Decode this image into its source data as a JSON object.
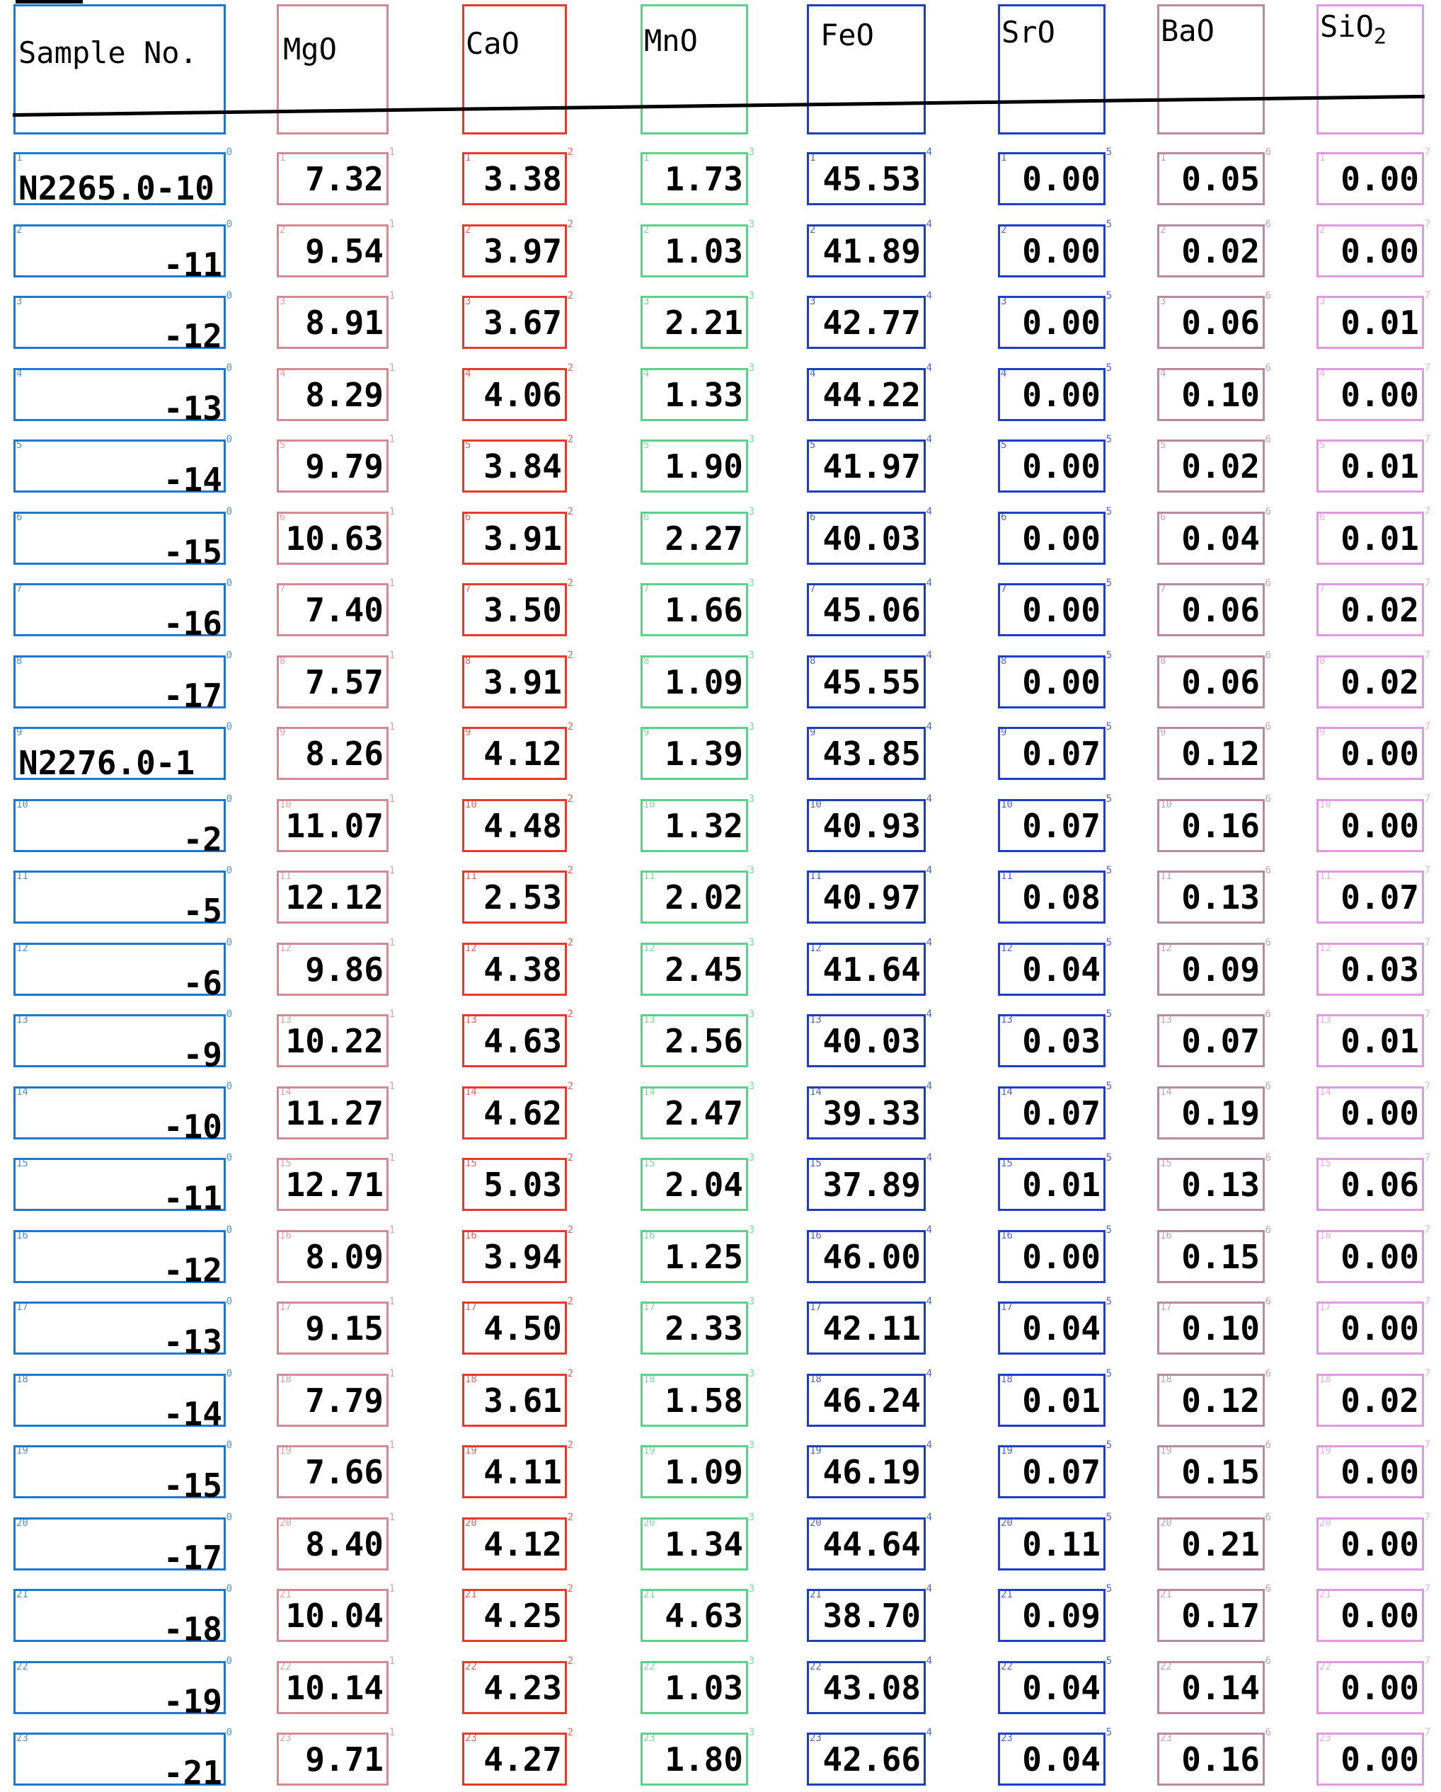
{
  "colors": {
    "sample": "#1e78d2",
    "mgo": "#d48a93",
    "cao": "#e8392f",
    "mno": "#5cd18a",
    "feo": "#1f3fb8",
    "sro": "#1f3fc8",
    "bao": "#b98aa0",
    "sio2": "#e09be0"
  },
  "header": {
    "sample_no": "Sample No.",
    "mgo": "MgO",
    "cao": "CaO",
    "mno": "MnO",
    "feo": "FeO",
    "sro": "SrO",
    "bao": "BaO",
    "sio2_main": "SiO",
    "sio2_sub": "2"
  },
  "rows": [
    {
      "sample": "N2265.0-10",
      "mgo": "7.32",
      "cao": "3.38",
      "mno": "1.73",
      "feo": "45.53",
      "sro": "0.00",
      "bao": "0.05",
      "sio2": "0.00"
    },
    {
      "sample": "-11",
      "mgo": "9.54",
      "cao": "3.97",
      "mno": "1.03",
      "feo": "41.89",
      "sro": "0.00",
      "bao": "0.02",
      "sio2": "0.00"
    },
    {
      "sample": "-12",
      "mgo": "8.91",
      "cao": "3.67",
      "mno": "2.21",
      "feo": "42.77",
      "sro": "0.00",
      "bao": "0.06",
      "sio2": "0.01"
    },
    {
      "sample": "-13",
      "mgo": "8.29",
      "cao": "4.06",
      "mno": "1.33",
      "feo": "44.22",
      "sro": "0.00",
      "bao": "0.10",
      "sio2": "0.00"
    },
    {
      "sample": "-14",
      "mgo": "9.79",
      "cao": "3.84",
      "mno": "1.90",
      "feo": "41.97",
      "sro": "0.00",
      "bao": "0.02",
      "sio2": "0.01"
    },
    {
      "sample": "-15",
      "mgo": "10.63",
      "cao": "3.91",
      "mno": "2.27",
      "feo": "40.03",
      "sro": "0.00",
      "bao": "0.04",
      "sio2": "0.01"
    },
    {
      "sample": "-16",
      "mgo": "7.40",
      "cao": "3.50",
      "mno": "1.66",
      "feo": "45.06",
      "sro": "0.00",
      "bao": "0.06",
      "sio2": "0.02"
    },
    {
      "sample": "-17",
      "mgo": "7.57",
      "cao": "3.91",
      "mno": "1.09",
      "feo": "45.55",
      "sro": "0.00",
      "bao": "0.06",
      "sio2": "0.02"
    },
    {
      "sample": "N2276.0-1",
      "mgo": "8.26",
      "cao": "4.12",
      "mno": "1.39",
      "feo": "43.85",
      "sro": "0.07",
      "bao": "0.12",
      "sio2": "0.00"
    },
    {
      "sample": "-2",
      "mgo": "11.07",
      "cao": "4.48",
      "mno": "1.32",
      "feo": "40.93",
      "sro": "0.07",
      "bao": "0.16",
      "sio2": "0.00"
    },
    {
      "sample": "-5",
      "mgo": "12.12",
      "cao": "2.53",
      "mno": "2.02",
      "feo": "40.97",
      "sro": "0.08",
      "bao": "0.13",
      "sio2": "0.07"
    },
    {
      "sample": "-6",
      "mgo": "9.86",
      "cao": "4.38",
      "mno": "2.45",
      "feo": "41.64",
      "sro": "0.04",
      "bao": "0.09",
      "sio2": "0.03"
    },
    {
      "sample": "-9",
      "mgo": "10.22",
      "cao": "4.63",
      "mno": "2.56",
      "feo": "40.03",
      "sro": "0.03",
      "bao": "0.07",
      "sio2": "0.01"
    },
    {
      "sample": "-10",
      "mgo": "11.27",
      "cao": "4.62",
      "mno": "2.47",
      "feo": "39.33",
      "sro": "0.07",
      "bao": "0.19",
      "sio2": "0.00"
    },
    {
      "sample": "-11",
      "mgo": "12.71",
      "cao": "5.03",
      "mno": "2.04",
      "feo": "37.89",
      "sro": "0.01",
      "bao": "0.13",
      "sio2": "0.06"
    },
    {
      "sample": "-12",
      "mgo": "8.09",
      "cao": "3.94",
      "mno": "1.25",
      "feo": "46.00",
      "sro": "0.00",
      "bao": "0.15",
      "sio2": "0.00"
    },
    {
      "sample": "-13",
      "mgo": "9.15",
      "cao": "4.50",
      "mno": "2.33",
      "feo": "42.11",
      "sro": "0.04",
      "bao": "0.10",
      "sio2": "0.00"
    },
    {
      "sample": "-14",
      "mgo": "7.79",
      "cao": "3.61",
      "mno": "1.58",
      "feo": "46.24",
      "sro": "0.01",
      "bao": "0.12",
      "sio2": "0.02"
    },
    {
      "sample": "-15",
      "mgo": "7.66",
      "cao": "4.11",
      "mno": "1.09",
      "feo": "46.19",
      "sro": "0.07",
      "bao": "0.15",
      "sio2": "0.00"
    },
    {
      "sample": "-17",
      "mgo": "8.40",
      "cao": "4.12",
      "mno": "1.34",
      "feo": "44.64",
      "sro": "0.11",
      "bao": "0.21",
      "sio2": "0.00"
    },
    {
      "sample": "-18",
      "mgo": "10.04",
      "cao": "4.25",
      "mno": "4.63",
      "feo": "38.70",
      "sro": "0.09",
      "bao": "0.17",
      "sio2": "0.00"
    },
    {
      "sample": "-19",
      "mgo": "10.14",
      "cao": "4.23",
      "mno": "1.03",
      "feo": "43.08",
      "sro": "0.04",
      "bao": "0.14",
      "sio2": "0.00"
    },
    {
      "sample": "-21",
      "mgo": "9.71",
      "cao": "4.27",
      "mno": "1.80",
      "feo": "42.66",
      "sro": "0.04",
      "bao": "0.16",
      "sio2": "0.00"
    }
  ]
}
